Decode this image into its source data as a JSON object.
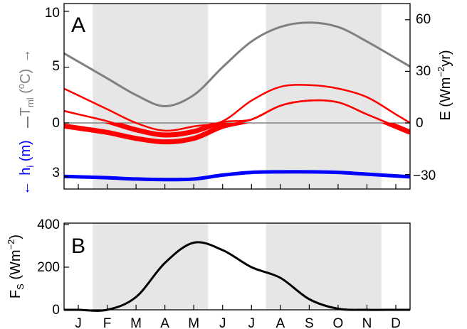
{
  "months": [
    "J",
    "F",
    "M",
    "A",
    "M",
    "J",
    "J",
    "A",
    "S",
    "O",
    "N",
    "D"
  ],
  "shaded_bands": [
    [
      0.5,
      4.5
    ],
    [
      6.5,
      10.5
    ]
  ],
  "panel_a": {
    "letter": "A",
    "left_ticks_upper": [
      "10",
      "5",
      "0"
    ],
    "left_ticks_lower": [
      "3"
    ],
    "right_ticks": [
      "60",
      "30",
      "0",
      "−30"
    ],
    "label_tml_base": "T",
    "label_tml_sub": "ml",
    "label_tml_unit": " (",
    "label_tml_sup": "o",
    "label_tml_end": "C)",
    "label_tml_arrow": "→",
    "label_hi_base": "h",
    "label_hi_sub": "i",
    "label_hi_unit": " (m)",
    "label_hi_arrow": "←",
    "label_e_base": "E (Wm",
    "label_e_sup": "−2",
    "label_e_end": "yr)",
    "colors": {
      "tml": "#808080",
      "hi": "#0000ff",
      "energy": "#ff0000",
      "zero": "#808080",
      "shade": "#e6e6e6"
    }
  },
  "panel_b": {
    "letter": "B",
    "yticks": [
      "0",
      "200",
      "400"
    ],
    "label_f_base": "F",
    "label_f_sub": "S",
    "label_f_unit": " (Wm",
    "label_f_sup": "−2",
    "label_f_end": ")"
  },
  "chart_data": [
    {
      "type": "line",
      "panel": "A",
      "x_unit": "month",
      "x": [
        0,
        1,
        2,
        3,
        4,
        5,
        6,
        7,
        8,
        9,
        10,
        11
      ],
      "series": [
        {
          "axis": "T_ml (oC)",
          "color": "#808080",
          "values": [
            5.5,
            4.0,
            2.5,
            1.5,
            2.5,
            5.0,
            7.3,
            8.6,
            9.0,
            8.6,
            7.3,
            5.8
          ]
        },
        {
          "axis": "h_i (m)",
          "color": "#0000ff",
          "values": [
            3.0,
            3.05,
            3.12,
            3.15,
            3.12,
            2.9,
            2.75,
            2.72,
            2.72,
            2.75,
            2.85,
            2.95
          ]
        },
        {
          "axis": "E (Wm-2 yr)",
          "color": "#ff0000",
          "values": [
            16,
            8,
            0,
            -4.5,
            -2,
            1,
            13,
            21,
            22,
            20,
            15,
            5
          ]
        },
        {
          "axis": "E (Wm-2 yr)",
          "color": "#ff0000",
          "values": [
            5,
            1,
            -4,
            -7,
            -5,
            0.5,
            2,
            10,
            13,
            12,
            5,
            -2
          ]
        },
        {
          "axis": "E (Wm-2 yr)",
          "color": "#ff0000",
          "values": [
            -3,
            -5.5,
            -9,
            -11,
            -9,
            -2,
            2,
            10,
            13,
            12,
            5,
            -2
          ]
        }
      ],
      "ylim_left_upper": [
        0,
        10
      ],
      "ylim_right": [
        -30,
        60
      ]
    },
    {
      "type": "line",
      "panel": "B",
      "x_unit": "month",
      "x": [
        0,
        1,
        2,
        3,
        4,
        5,
        6,
        7,
        8,
        9,
        10,
        11
      ],
      "series": [
        {
          "axis": "F_S (Wm-2)",
          "color": "#000000",
          "values": [
            0,
            0,
            60,
            220,
            315,
            280,
            200,
            150,
            50,
            5,
            0,
            0
          ]
        }
      ],
      "ylim": [
        0,
        400
      ]
    }
  ]
}
